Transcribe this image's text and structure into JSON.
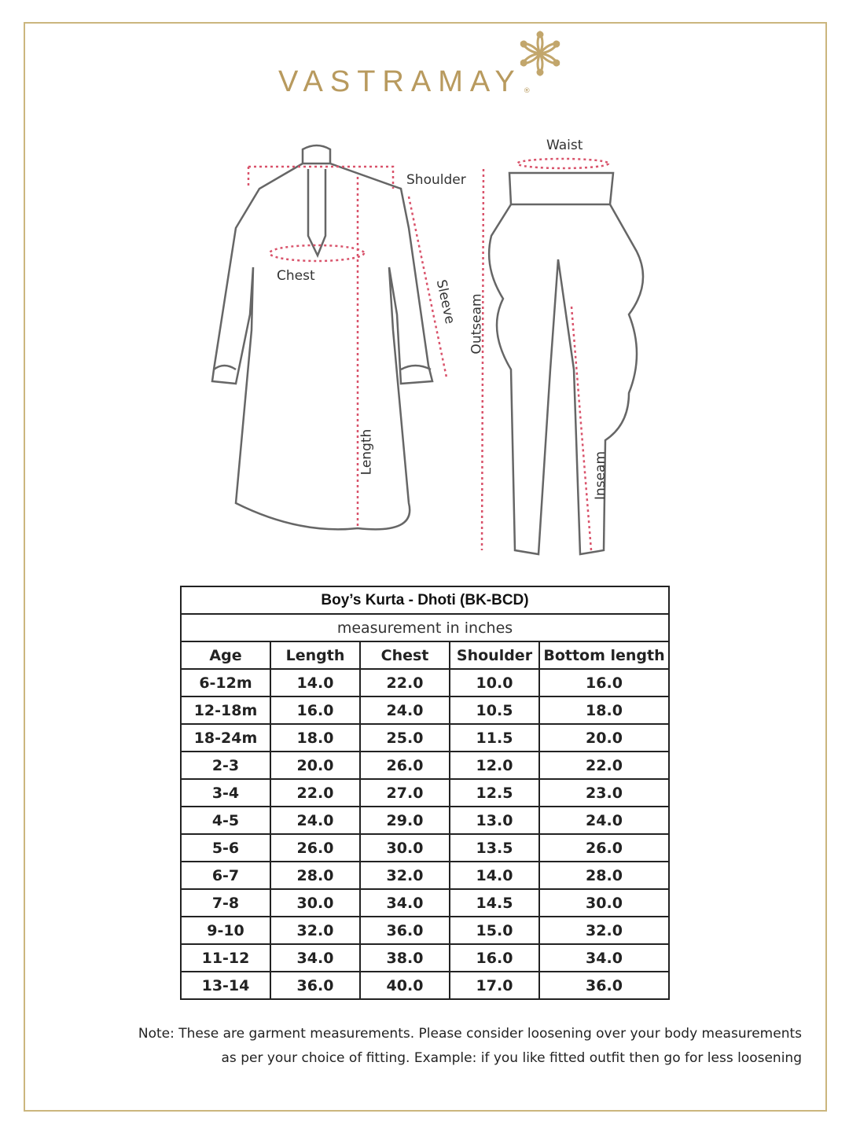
{
  "brand": {
    "name": "VASTRAMAY",
    "registered": "®",
    "color": "#b89a5e"
  },
  "diagram": {
    "kurta_labels": {
      "shoulder": "Shoulder",
      "chest": "Chest",
      "sleeve": "Sleeve",
      "length": "Length"
    },
    "dhoti_labels": {
      "waist": "Waist",
      "outseam": "Outseam",
      "inseam": "Inseam"
    },
    "measure_line_color": "#d9536b"
  },
  "table": {
    "title": "Boy’s Kurta - Dhoti (BK-BCD)",
    "subtitle": "measurement in inches",
    "headers": [
      "Age",
      "Length",
      "Chest",
      "Shoulder",
      "Bottom length"
    ],
    "rows": [
      [
        "6-12m",
        "14.0",
        "22.0",
        "10.0",
        "16.0"
      ],
      [
        "12-18m",
        "16.0",
        "24.0",
        "10.5",
        "18.0"
      ],
      [
        "18-24m",
        "18.0",
        "25.0",
        "11.5",
        "20.0"
      ],
      [
        "2-3",
        "20.0",
        "26.0",
        "12.0",
        "22.0"
      ],
      [
        "3-4",
        "22.0",
        "27.0",
        "12.5",
        "23.0"
      ],
      [
        "4-5",
        "24.0",
        "29.0",
        "13.0",
        "24.0"
      ],
      [
        "5-6",
        "26.0",
        "30.0",
        "13.5",
        "26.0"
      ],
      [
        "6-7",
        "28.0",
        "32.0",
        "14.0",
        "28.0"
      ],
      [
        "7-8",
        "30.0",
        "34.0",
        "14.5",
        "30.0"
      ],
      [
        "9-10",
        "32.0",
        "36.0",
        "15.0",
        "32.0"
      ],
      [
        "11-12",
        "34.0",
        "38.0",
        "16.0",
        "34.0"
      ],
      [
        "13-14",
        "36.0",
        "40.0",
        "17.0",
        "36.0"
      ]
    ]
  },
  "note": {
    "line1": "Note: These are garment measurements. Please consider loosening over your body measurements",
    "line2": "as per your choice of fitting. Example: if you like fitted outfit then go for less loosening"
  }
}
